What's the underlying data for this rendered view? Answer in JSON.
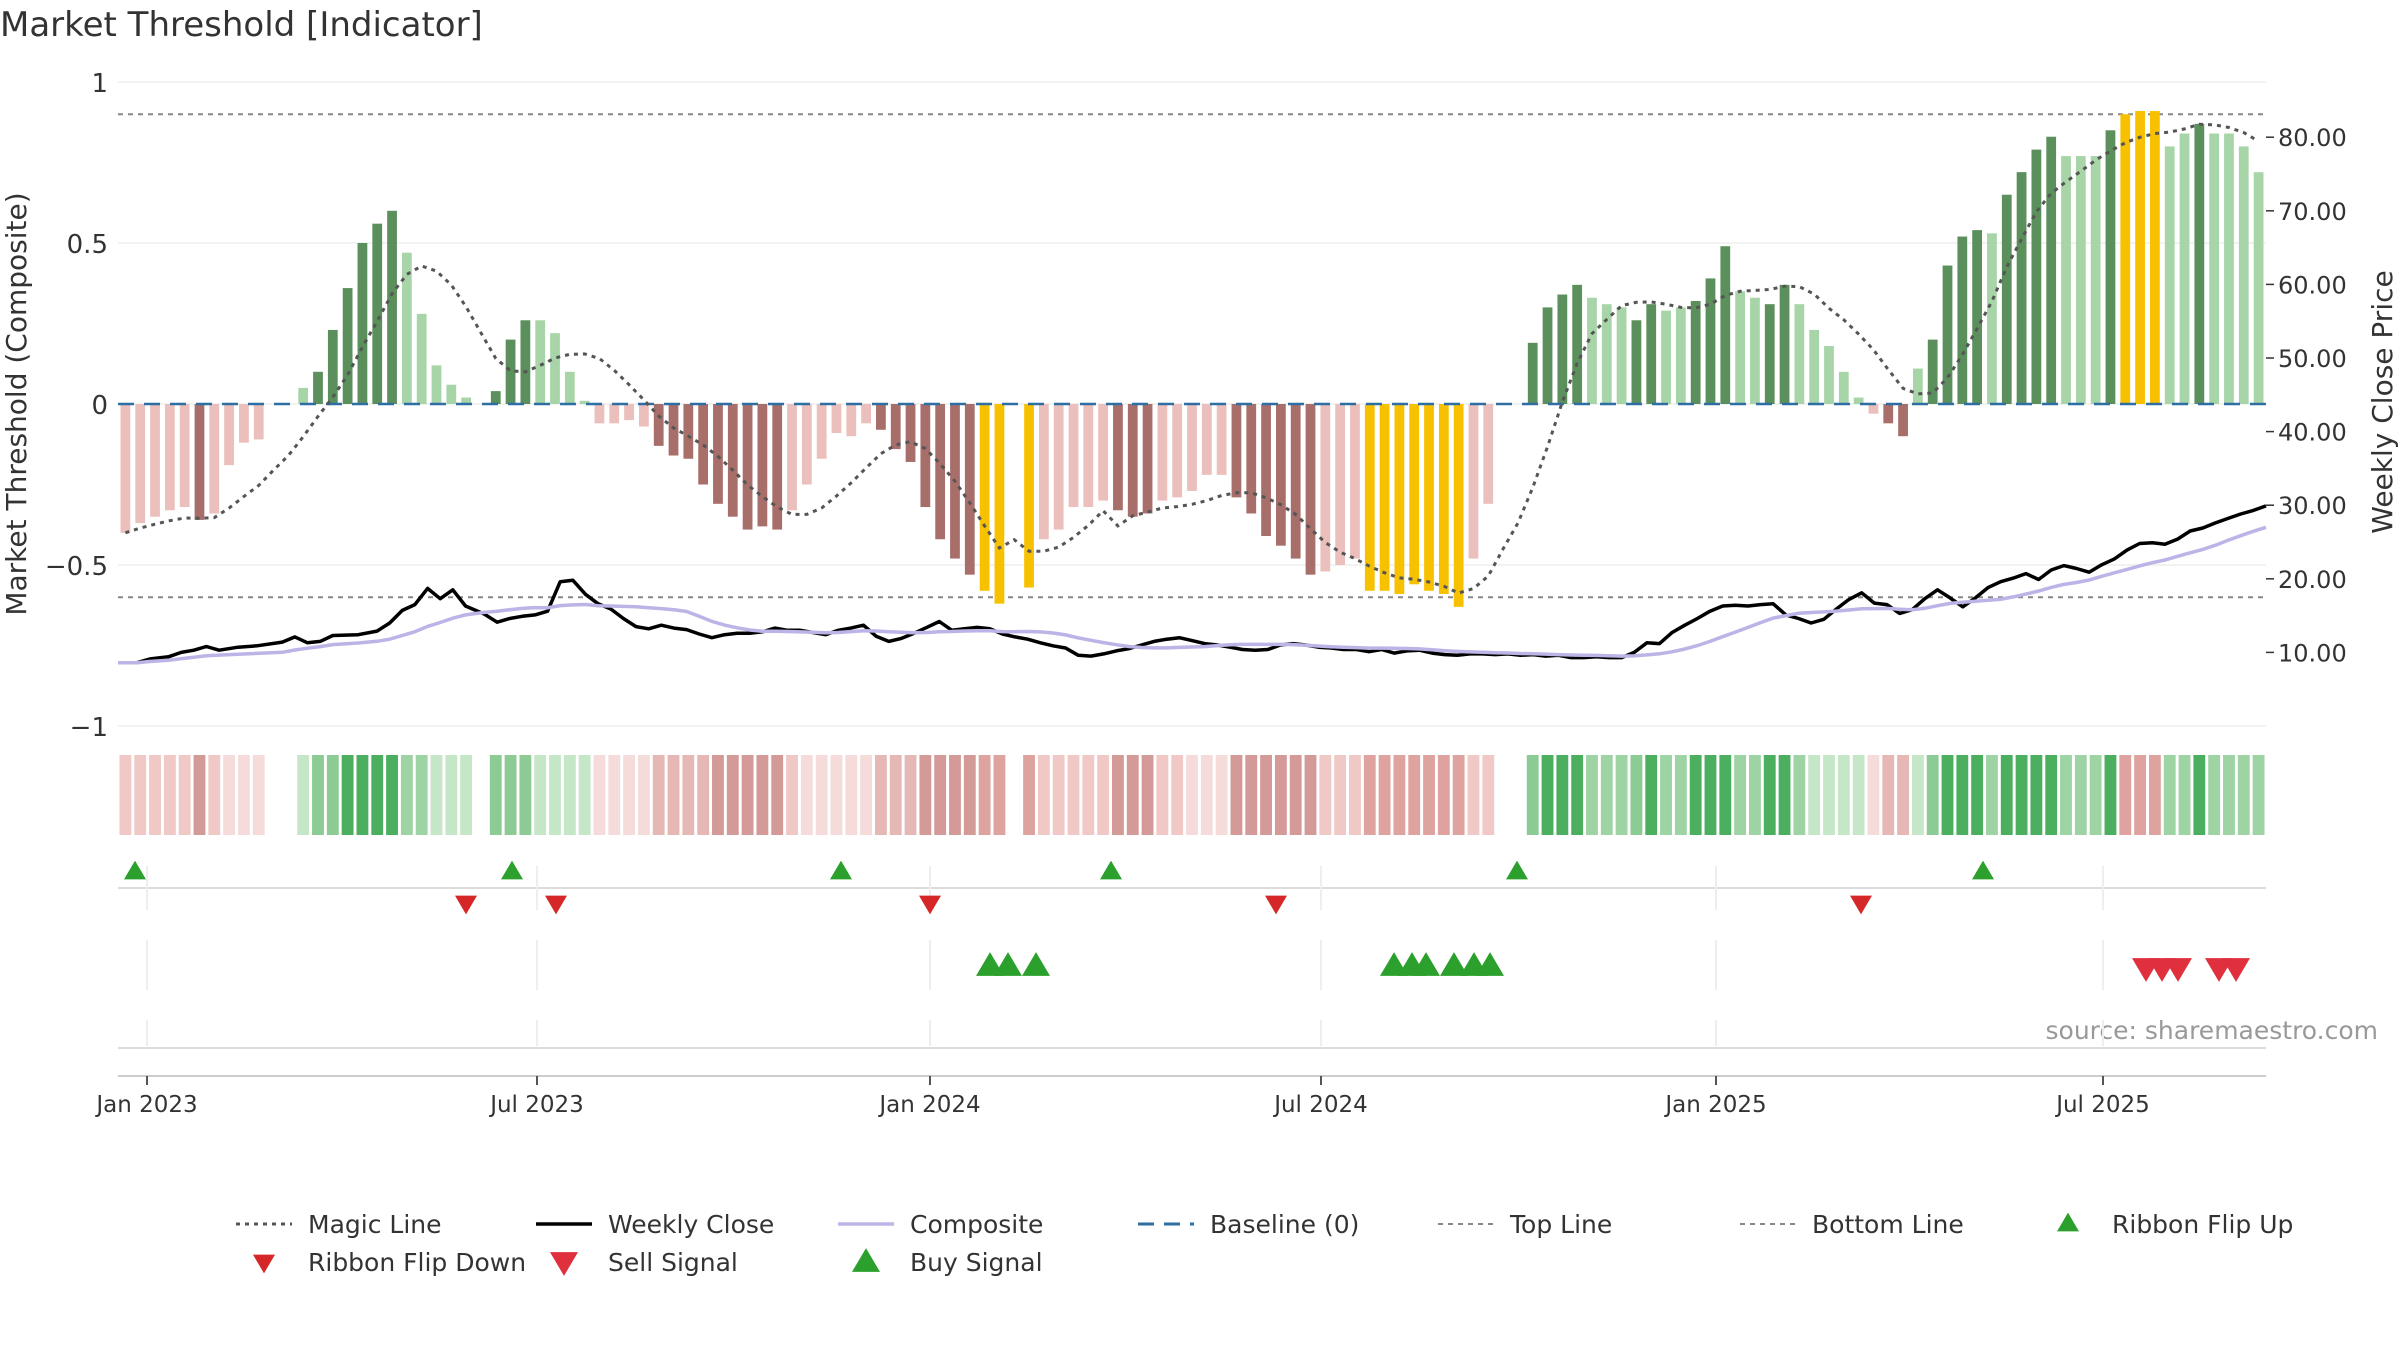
{
  "chart_data": {
    "type": "bar",
    "title": "Market Threshold [Indicator]",
    "ylabel": "Market Threshold (Composite)",
    "y2label": "Weekly Close Price",
    "ylim": [
      -1,
      1
    ],
    "y2lim": [
      0,
      87.5
    ],
    "yticks": [
      "−1",
      "−0.5",
      "0",
      "0.5",
      "1"
    ],
    "y2ticks": [
      "10.00",
      "20.00",
      "30.00",
      "40.00",
      "50.00",
      "60.00",
      "70.00",
      "80.00"
    ],
    "xticks": [
      "Jan 2023",
      "Jul 2023",
      "Jan 2024",
      "Jul 2024",
      "Jan 2025",
      "Jul 2025"
    ],
    "top_line": 0.9,
    "bottom_line": -0.6,
    "source": "source: sharemaestro.com",
    "legend": [
      "Magic Line",
      "Weekly Close",
      "Composite",
      "Baseline (0)",
      "Top Line",
      "Bottom Line",
      "Ribbon Flip Up",
      "Ribbon Flip Down",
      "Sell Signal",
      "Buy Signal"
    ],
    "colors": {
      "bull_strong": "#5b8f5b",
      "bull_light": "#a8d5a8",
      "bear_strong": "#a86e6a",
      "bear_light": "#ebbfbb",
      "extreme": "#f8c100",
      "close": "#000000",
      "composite": "#bdb3e6",
      "magic": "#555555",
      "baseline": "#2e6fa3",
      "threshold": "#888888",
      "flip_up": "#2ca02c",
      "flip_down": "#d62728",
      "sell": "#e0303e",
      "buy": "#2ca02c"
    },
    "histogram": [
      [
        -0.4,
        "bl"
      ],
      [
        -0.37,
        "bl"
      ],
      [
        -0.35,
        "bl"
      ],
      [
        -0.33,
        "bl"
      ],
      [
        -0.32,
        "bl"
      ],
      [
        -0.36,
        "bs"
      ],
      [
        -0.34,
        "bl"
      ],
      [
        -0.19,
        "bl"
      ],
      [
        -0.12,
        "bl"
      ],
      [
        -0.11,
        "bl"
      ],
      [
        0,
        "e"
      ],
      [
        0,
        "e"
      ],
      [
        0.05,
        "gl"
      ],
      [
        0.1,
        "gs"
      ],
      [
        0.23,
        "gs"
      ],
      [
        0.36,
        "gs"
      ],
      [
        0.5,
        "gs"
      ],
      [
        0.56,
        "gs"
      ],
      [
        0.6,
        "gs"
      ],
      [
        0.47,
        "gl"
      ],
      [
        0.28,
        "gl"
      ],
      [
        0.12,
        "gl"
      ],
      [
        0.06,
        "gl"
      ],
      [
        0.02,
        "gl"
      ],
      [
        0,
        "e"
      ],
      [
        0.04,
        "gs"
      ],
      [
        0.2,
        "gs"
      ],
      [
        0.26,
        "gs"
      ],
      [
        0.26,
        "gl"
      ],
      [
        0.22,
        "gl"
      ],
      [
        0.1,
        "gl"
      ],
      [
        0.01,
        "gl"
      ],
      [
        -0.06,
        "bl"
      ],
      [
        -0.06,
        "bl"
      ],
      [
        -0.05,
        "bl"
      ],
      [
        -0.07,
        "bl"
      ],
      [
        -0.13,
        "bs"
      ],
      [
        -0.16,
        "bs"
      ],
      [
        -0.17,
        "bs"
      ],
      [
        -0.25,
        "bs"
      ],
      [
        -0.31,
        "bs"
      ],
      [
        -0.35,
        "bs"
      ],
      [
        -0.39,
        "bs"
      ],
      [
        -0.38,
        "bs"
      ],
      [
        -0.39,
        "bs"
      ],
      [
        -0.33,
        "bl"
      ],
      [
        -0.25,
        "bl"
      ],
      [
        -0.17,
        "bl"
      ],
      [
        -0.09,
        "bl"
      ],
      [
        -0.1,
        "bl"
      ],
      [
        -0.06,
        "bl"
      ],
      [
        -0.08,
        "bs"
      ],
      [
        -0.14,
        "bs"
      ],
      [
        -0.18,
        "bs"
      ],
      [
        -0.32,
        "bs"
      ],
      [
        -0.42,
        "bs"
      ],
      [
        -0.48,
        "bs"
      ],
      [
        -0.53,
        "bs"
      ],
      [
        -0.58,
        "y"
      ],
      [
        -0.62,
        "y"
      ],
      [
        0,
        "e"
      ],
      [
        -0.57,
        "y"
      ],
      [
        -0.42,
        "bl"
      ],
      [
        -0.39,
        "bl"
      ],
      [
        -0.32,
        "bl"
      ],
      [
        -0.32,
        "bl"
      ],
      [
        -0.3,
        "bl"
      ],
      [
        -0.33,
        "bs"
      ],
      [
        -0.35,
        "bs"
      ],
      [
        -0.34,
        "bs"
      ],
      [
        -0.3,
        "bl"
      ],
      [
        -0.29,
        "bl"
      ],
      [
        -0.27,
        "bl"
      ],
      [
        -0.22,
        "bl"
      ],
      [
        -0.22,
        "bl"
      ],
      [
        -0.29,
        "bs"
      ],
      [
        -0.34,
        "bs"
      ],
      [
        -0.41,
        "bs"
      ],
      [
        -0.44,
        "bs"
      ],
      [
        -0.48,
        "bs"
      ],
      [
        -0.53,
        "bs"
      ],
      [
        -0.52,
        "bl"
      ],
      [
        -0.5,
        "bl"
      ],
      [
        -0.48,
        "bl"
      ],
      [
        -0.58,
        "y"
      ],
      [
        -0.58,
        "y"
      ],
      [
        -0.59,
        "y"
      ],
      [
        -0.56,
        "y"
      ],
      [
        -0.58,
        "y"
      ],
      [
        -0.59,
        "y"
      ],
      [
        -0.63,
        "y"
      ],
      [
        -0.48,
        "bl"
      ],
      [
        -0.31,
        "bl"
      ],
      [
        0,
        "e"
      ],
      [
        0,
        "e"
      ],
      [
        0.19,
        "gs"
      ],
      [
        0.3,
        "gs"
      ],
      [
        0.34,
        "gs"
      ],
      [
        0.37,
        "gs"
      ],
      [
        0.33,
        "gl"
      ],
      [
        0.31,
        "gl"
      ],
      [
        0.3,
        "gl"
      ],
      [
        0.26,
        "gs"
      ],
      [
        0.31,
        "gs"
      ],
      [
        0.29,
        "gl"
      ],
      [
        0.3,
        "gl"
      ],
      [
        0.32,
        "gs"
      ],
      [
        0.39,
        "gs"
      ],
      [
        0.49,
        "gs"
      ],
      [
        0.35,
        "gl"
      ],
      [
        0.33,
        "gl"
      ],
      [
        0.31,
        "gs"
      ],
      [
        0.37,
        "gs"
      ],
      [
        0.31,
        "gl"
      ],
      [
        0.23,
        "gl"
      ],
      [
        0.18,
        "gl"
      ],
      [
        0.1,
        "gl"
      ],
      [
        0.02,
        "gl"
      ],
      [
        -0.03,
        "bl"
      ],
      [
        -0.06,
        "bs"
      ],
      [
        -0.1,
        "bs"
      ],
      [
        0.11,
        "gl"
      ],
      [
        0.2,
        "gs"
      ],
      [
        0.43,
        "gs"
      ],
      [
        0.52,
        "gs"
      ],
      [
        0.54,
        "gs"
      ],
      [
        0.53,
        "gl"
      ],
      [
        0.65,
        "gs"
      ],
      [
        0.72,
        "gs"
      ],
      [
        0.79,
        "gs"
      ],
      [
        0.83,
        "gs"
      ],
      [
        0.77,
        "gl"
      ],
      [
        0.77,
        "gl"
      ],
      [
        0.77,
        "gl"
      ],
      [
        0.85,
        "gs"
      ],
      [
        0.9,
        "y"
      ],
      [
        0.91,
        "y"
      ],
      [
        0.91,
        "y"
      ],
      [
        0.8,
        "gl"
      ],
      [
        0.84,
        "gl"
      ],
      [
        0.87,
        "gs"
      ],
      [
        0.84,
        "gl"
      ],
      [
        0.84,
        "gl"
      ],
      [
        0.8,
        "gl"
      ],
      [
        0.72,
        "gl"
      ]
    ],
    "weekly_close": [
      [
        0,
        8.6
      ],
      [
        3,
        8.6
      ],
      [
        5,
        9.1
      ],
      [
        8,
        9.4
      ],
      [
        10,
        10
      ],
      [
        12,
        10.3
      ],
      [
        14,
        10.8
      ],
      [
        16,
        10.3
      ],
      [
        19,
        10.7
      ],
      [
        22,
        10.9
      ],
      [
        26,
        11.4
      ],
      [
        28,
        12.1
      ],
      [
        30,
        11.3
      ],
      [
        32,
        11.5
      ],
      [
        34,
        12.3
      ],
      [
        38,
        12.4
      ],
      [
        41,
        12.9
      ],
      [
        43,
        14
      ],
      [
        45,
        15.7
      ],
      [
        47,
        16.5
      ],
      [
        49,
        18.7
      ],
      [
        51,
        17.3
      ],
      [
        53,
        18.5
      ],
      [
        55,
        16.3
      ],
      [
        58,
        15.2
      ],
      [
        60,
        14.1
      ],
      [
        62,
        14.6
      ],
      [
        64,
        14.9
      ],
      [
        66,
        15.1
      ],
      [
        68,
        15.6
      ],
      [
        70,
        19.6
      ],
      [
        72,
        19.8
      ],
      [
        74,
        17.9
      ],
      [
        76,
        16.6
      ],
      [
        78,
        15.9
      ],
      [
        80,
        14.6
      ],
      [
        82,
        13.5
      ],
      [
        84,
        13.2
      ],
      [
        86,
        13.7
      ],
      [
        88,
        13.3
      ],
      [
        90,
        13.1
      ],
      [
        92,
        12.5
      ],
      [
        94,
        12
      ],
      [
        96,
        12.4
      ],
      [
        98,
        12.6
      ],
      [
        100,
        12.6
      ],
      [
        102,
        12.8
      ],
      [
        104,
        13.3
      ],
      [
        106,
        13
      ],
      [
        108,
        13
      ],
      [
        110,
        12.7
      ],
      [
        112,
        12.4
      ],
      [
        114,
        13
      ],
      [
        116,
        13.3
      ],
      [
        118,
        13.7
      ],
      [
        120,
        12.2
      ],
      [
        122,
        11.5
      ],
      [
        124,
        11.9
      ],
      [
        126,
        12.6
      ],
      [
        128,
        13.4
      ],
      [
        130,
        14.2
      ],
      [
        132,
        13
      ],
      [
        134,
        13.2
      ],
      [
        136,
        13.4
      ],
      [
        138,
        13.2
      ],
      [
        140,
        12.5
      ],
      [
        142,
        12.1
      ],
      [
        144,
        11.8
      ],
      [
        146,
        11.3
      ],
      [
        148,
        10.9
      ],
      [
        150,
        10.6
      ],
      [
        152,
        9.6
      ],
      [
        154,
        9.5
      ],
      [
        156,
        9.8
      ],
      [
        158,
        10.2
      ],
      [
        160,
        10.5
      ],
      [
        162,
        11
      ],
      [
        164,
        11.5
      ],
      [
        166,
        11.8
      ],
      [
        168,
        12
      ],
      [
        170,
        11.6
      ],
      [
        172,
        11.2
      ],
      [
        174,
        11
      ],
      [
        176,
        10.7
      ],
      [
        178,
        10.4
      ],
      [
        180,
        10.3
      ],
      [
        182,
        10.4
      ],
      [
        184,
        11
      ],
      [
        186,
        11.2
      ],
      [
        188,
        11
      ],
      [
        190,
        10.7
      ],
      [
        192,
        10.6
      ],
      [
        194,
        10.4
      ],
      [
        196,
        10.4
      ],
      [
        198,
        10.1
      ],
      [
        200,
        10.4
      ],
      [
        202,
        9.9
      ],
      [
        204,
        10.2
      ],
      [
        206,
        10.3
      ],
      [
        208,
        9.9
      ],
      [
        210,
        9.7
      ],
      [
        212,
        9.6
      ],
      [
        214,
        9.8
      ],
      [
        216,
        9.8
      ],
      [
        218,
        9.7
      ],
      [
        220,
        9.8
      ],
      [
        222,
        9.6
      ],
      [
        224,
        9.7
      ],
      [
        226,
        9.5
      ],
      [
        228,
        9.6
      ],
      [
        230,
        9.3
      ],
      [
        232,
        9.3
      ],
      [
        234,
        9.4
      ],
      [
        236,
        9.3
      ],
      [
        238,
        9.3
      ],
      [
        240,
        10
      ],
      [
        242,
        11.3
      ],
      [
        244,
        11.2
      ],
      [
        246,
        12.7
      ],
      [
        248,
        13.7
      ],
      [
        250,
        14.6
      ],
      [
        252,
        15.6
      ],
      [
        254,
        16.3
      ],
      [
        256,
        16.4
      ],
      [
        258,
        16.3
      ],
      [
        260,
        16.5
      ],
      [
        262,
        16.6
      ],
      [
        264,
        15.1
      ],
      [
        266,
        14.6
      ],
      [
        268,
        14
      ],
      [
        270,
        14.5
      ],
      [
        272,
        15.9
      ],
      [
        274,
        17.2
      ],
      [
        276,
        18.1
      ],
      [
        278,
        16.7
      ],
      [
        280,
        16.5
      ],
      [
        282,
        15.3
      ],
      [
        284,
        15.8
      ],
      [
        286,
        17.3
      ],
      [
        288,
        18.5
      ],
      [
        290,
        17.4
      ],
      [
        292,
        16.2
      ],
      [
        294,
        17.4
      ],
      [
        296,
        18.8
      ],
      [
        298,
        19.6
      ],
      [
        300,
        20.1
      ],
      [
        302,
        20.7
      ],
      [
        304,
        19.9
      ],
      [
        306,
        21.2
      ],
      [
        308,
        21.8
      ],
      [
        310,
        21.4
      ],
      [
        312,
        20.9
      ],
      [
        314,
        21.9
      ],
      [
        316,
        22.7
      ],
      [
        318,
        23.9
      ],
      [
        320,
        24.8
      ],
      [
        322,
        24.9
      ],
      [
        324,
        24.7
      ],
      [
        326,
        25.4
      ],
      [
        328,
        26.5
      ],
      [
        330,
        26.9
      ],
      [
        332,
        27.6
      ],
      [
        334,
        28.2
      ],
      [
        336,
        28.8
      ],
      [
        338,
        29.3
      ],
      [
        340,
        29.9
      ]
    ]
  }
}
